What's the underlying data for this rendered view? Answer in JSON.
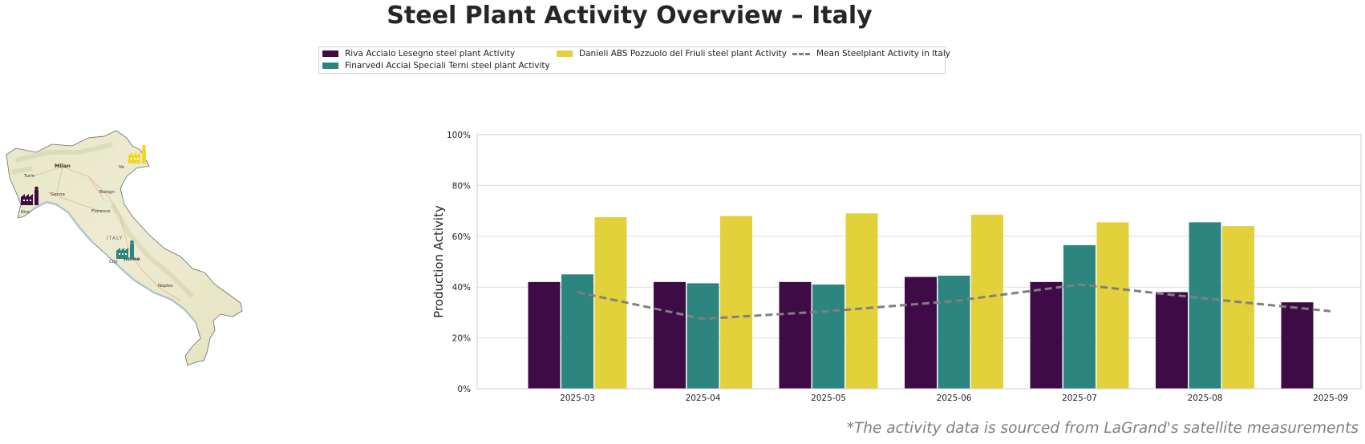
{
  "title": "Steel Plant Activity Overview – Italy",
  "footnote": "*The activity data is sourced from LaGrand's satellite measurements",
  "legend": {
    "items": [
      {
        "label": "Riva Acciaio Lesegno steel plant Activity",
        "color": "#3f0b46"
      },
      {
        "label": "Finarvedi Acciai Speciali Terni steel plant Activity",
        "color": "#2d8580"
      },
      {
        "label": "Danieli ABS Pozzuolo del Friuli steel plant Activity",
        "color": "#e2d13b"
      },
      {
        "label": "Mean Steelplant Activity in Italy",
        "color": "#808080"
      }
    ]
  },
  "map": {
    "labels": {
      "milan": "Milan",
      "turin": "Turin",
      "genoa": "Genoa",
      "bologna": "Bologn",
      "venice": "Ve",
      "florence": "Florence",
      "italy": "ITALY",
      "city": "City",
      "rome": "Rome",
      "naples": "Naples",
      "nice": "Nice"
    }
  },
  "chart_data": {
    "type": "bar",
    "categories": [
      "2025-03",
      "2025-04",
      "2025-05",
      "2025-06",
      "2025-07",
      "2025-08",
      "2025-09"
    ],
    "series": [
      {
        "name": "Riva Acciaio Lesegno steel plant Activity",
        "color": "#3f0b46",
        "values": [
          42,
          42,
          42,
          44,
          42,
          38,
          34
        ]
      },
      {
        "name": "Finarvedi Acciai Speciali Terni steel plant Activity",
        "color": "#2d8580",
        "values": [
          45,
          41.5,
          41,
          44.5,
          56.5,
          65.5,
          null
        ]
      },
      {
        "name": "Danieli ABS Pozzuolo del Friuli steel plant Activity",
        "color": "#e2d13b",
        "values": [
          67.5,
          68,
          69,
          68.5,
          65.5,
          64,
          null
        ]
      }
    ],
    "line": {
      "name": "Mean Steelplant Activity in Italy",
      "color": "#808080",
      "style": "dashed",
      "values": [
        38,
        27.5,
        30.5,
        34.5,
        41,
        35.5,
        30.5
      ]
    },
    "ylabel": "Production Activity",
    "xlabel": "",
    "ylim": [
      0,
      100
    ],
    "yticks": [
      "0%",
      "20%",
      "40%",
      "60%",
      "80%",
      "100%"
    ],
    "grid": true
  }
}
